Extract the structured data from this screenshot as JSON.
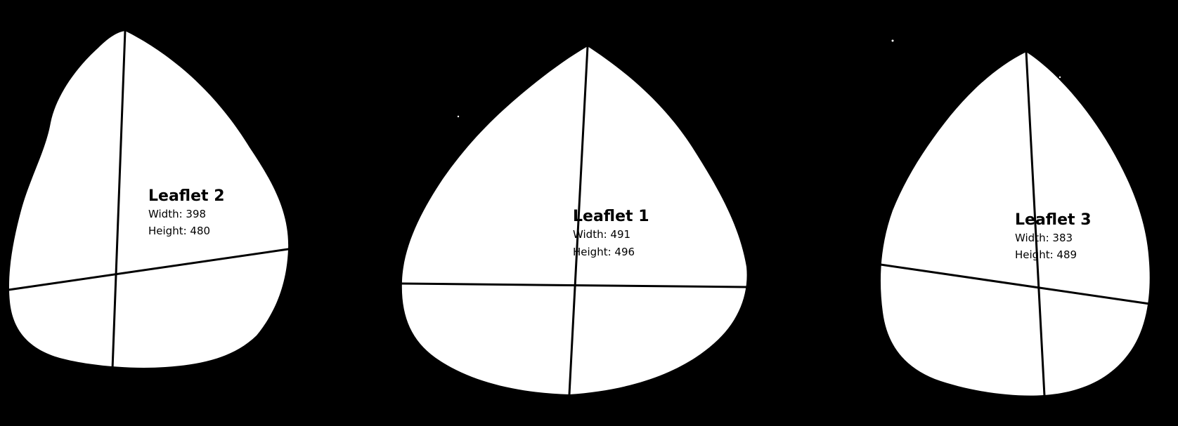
{
  "background_color": "#000000",
  "leaf_color": "#ffffff",
  "line_color": "#000000",
  "leaflets": [
    {
      "id": "leaflet-2",
      "title": "Leaflet 2",
      "width_text": "Width: 398",
      "height_text": "Height: 480",
      "width": 398,
      "height": 480
    },
    {
      "id": "leaflet-1",
      "title": "Leaflet 1",
      "width_text": "Width: 491",
      "height_text": "Height: 496",
      "width": 491,
      "height": 496
    },
    {
      "id": "leaflet-3",
      "title": "Leaflet 3",
      "width_text": "Width: 383",
      "height_text": "Height: 489",
      "width": 383,
      "height": 489
    }
  ]
}
